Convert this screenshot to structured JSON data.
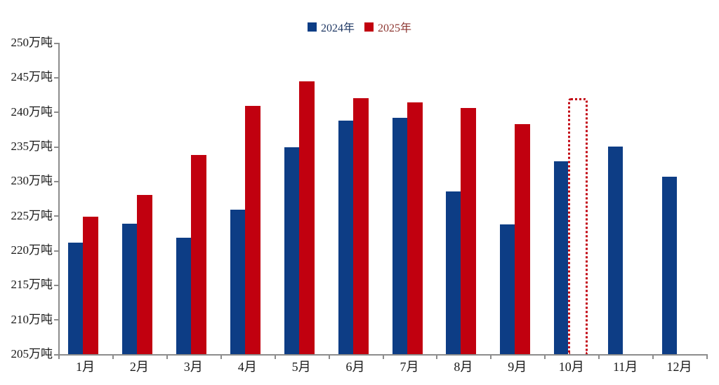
{
  "legend": {
    "items": [
      {
        "label": "2024年",
        "swatch_color": "#0d3d85",
        "text_color": "#1f3864"
      },
      {
        "label": "2025年",
        "swatch_color": "#c1000f",
        "text_color": "#8c3530"
      }
    ]
  },
  "y_axis_labels": [
    "250万吨",
    "245万吨",
    "240万吨",
    "235万吨",
    "230万吨",
    "225万吨",
    "220万吨",
    "215万吨",
    "210万吨",
    "205万吨"
  ],
  "chart_data": {
    "type": "bar",
    "title": "",
    "unit": "万吨",
    "categories": [
      "1月",
      "2月",
      "3月",
      "4月",
      "5月",
      "6月",
      "7月",
      "8月",
      "9月",
      "10月",
      "11月",
      "12月"
    ],
    "series": [
      {
        "name": "2024年",
        "color": "#0d3d85",
        "values": [
          221.1,
          223.9,
          221.8,
          225.9,
          234.9,
          238.7,
          239.2,
          228.5,
          223.7,
          232.9,
          235.0,
          230.6
        ]
      },
      {
        "name": "2025年",
        "color": "#c1000f",
        "values": [
          224.9,
          228.0,
          233.8,
          240.9,
          244.4,
          242.0,
          241.4,
          240.6,
          238.2,
          null,
          null,
          null
        ]
      }
    ],
    "forecast_bar": {
      "series": "2025年",
      "category": "10月",
      "value": 242.0,
      "style": "red-dotted-outline"
    },
    "ylim": [
      205,
      250
    ],
    "ytick_step": 5,
    "ytick_suffix": "万吨",
    "grid": false,
    "legend_position": "top-center"
  }
}
